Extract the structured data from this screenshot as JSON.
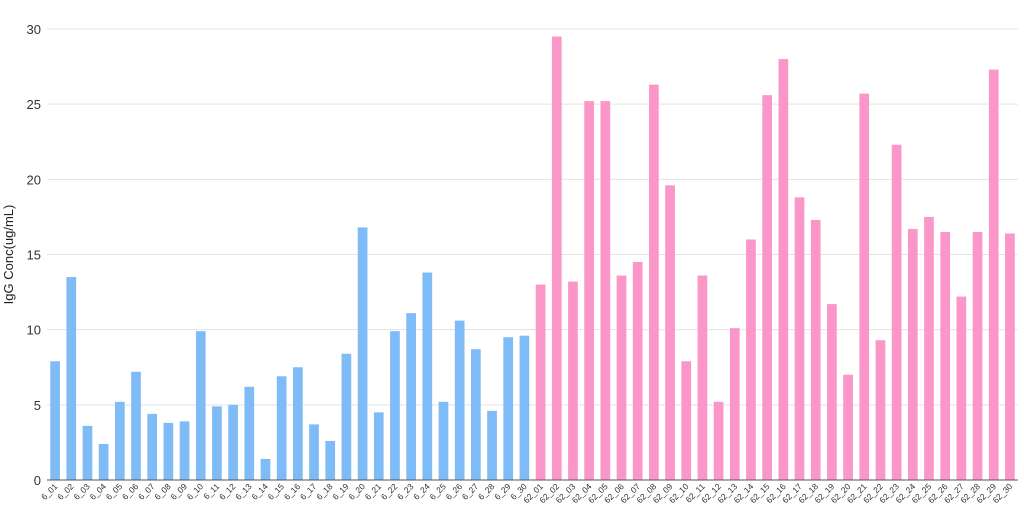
{
  "chart_data": {
    "type": "bar",
    "xlabel": "",
    "ylabel": "IgG Conc(ug/mL)",
    "ylim": [
      0,
      30
    ],
    "yticks": [
      0,
      5,
      10,
      15,
      20,
      25,
      30
    ],
    "grid": true,
    "legend": "none",
    "colors": {
      "group_6": "#7fbcf7",
      "group_62": "#fb96c8"
    },
    "categories": [
      "6_01",
      "6_02",
      "6_03",
      "6_04",
      "6_05",
      "6_06",
      "6_07",
      "6_08",
      "6_09",
      "6_10",
      "6_11",
      "6_12",
      "6_13",
      "6_14",
      "6_15",
      "6_16",
      "6_17",
      "6_18",
      "6_19",
      "6_20",
      "6_21",
      "6_22",
      "6_23",
      "6_24",
      "6_25",
      "6_26",
      "6_27",
      "6_28",
      "6_29",
      "6_30",
      "62_01",
      "62_02",
      "62_03",
      "62_04",
      "62_05",
      "62_06",
      "62_07",
      "62_08",
      "62_09",
      "62_10",
      "62_11",
      "62_12",
      "62_13",
      "62_14",
      "62_15",
      "62_16",
      "62_17",
      "62_18",
      "62_19",
      "62_20",
      "62_21",
      "62_22",
      "62_23",
      "62_24",
      "62_25",
      "62_26",
      "62_27",
      "62_28",
      "62_29",
      "62_30"
    ],
    "values": [
      7.9,
      13.5,
      3.6,
      2.4,
      5.2,
      7.2,
      4.4,
      3.8,
      3.9,
      9.9,
      4.9,
      5.0,
      6.2,
      1.4,
      6.9,
      7.5,
      3.7,
      2.6,
      8.4,
      16.8,
      4.5,
      9.9,
      11.1,
      13.8,
      5.2,
      10.6,
      8.7,
      4.6,
      9.5,
      9.6,
      13.0,
      29.5,
      13.2,
      25.2,
      25.2,
      13.6,
      14.5,
      26.3,
      19.6,
      7.9,
      13.6,
      5.2,
      10.1,
      16.0,
      25.6,
      28.0,
      18.8,
      17.3,
      11.7,
      7.0,
      25.7,
      9.3,
      22.3,
      16.7,
      17.5,
      16.5,
      12.2,
      16.5,
      27.3,
      16.4
    ]
  }
}
